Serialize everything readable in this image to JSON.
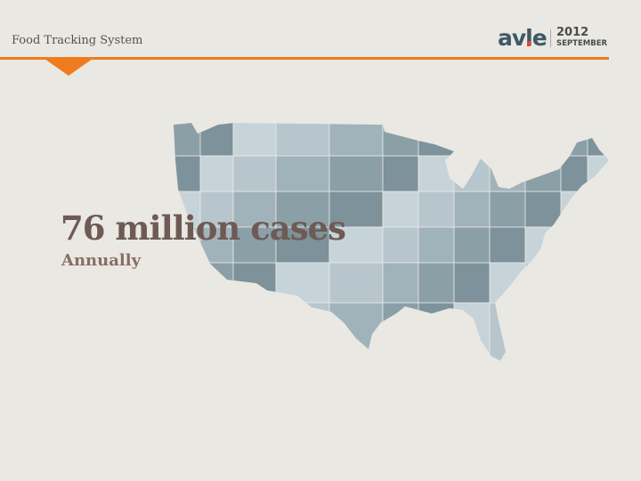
{
  "header": {
    "title": "Food Tracking System",
    "logo": "avle",
    "year": "2012",
    "month": "SEPTEMBER",
    "accent_color": "#ef7b1f"
  },
  "main": {
    "headline": "76 million cases",
    "subheadline": "Annually",
    "map_colors": [
      "#8b9fa7",
      "#a1b3ba",
      "#b6c6cc",
      "#c6d4d9",
      "#7d929a"
    ]
  }
}
